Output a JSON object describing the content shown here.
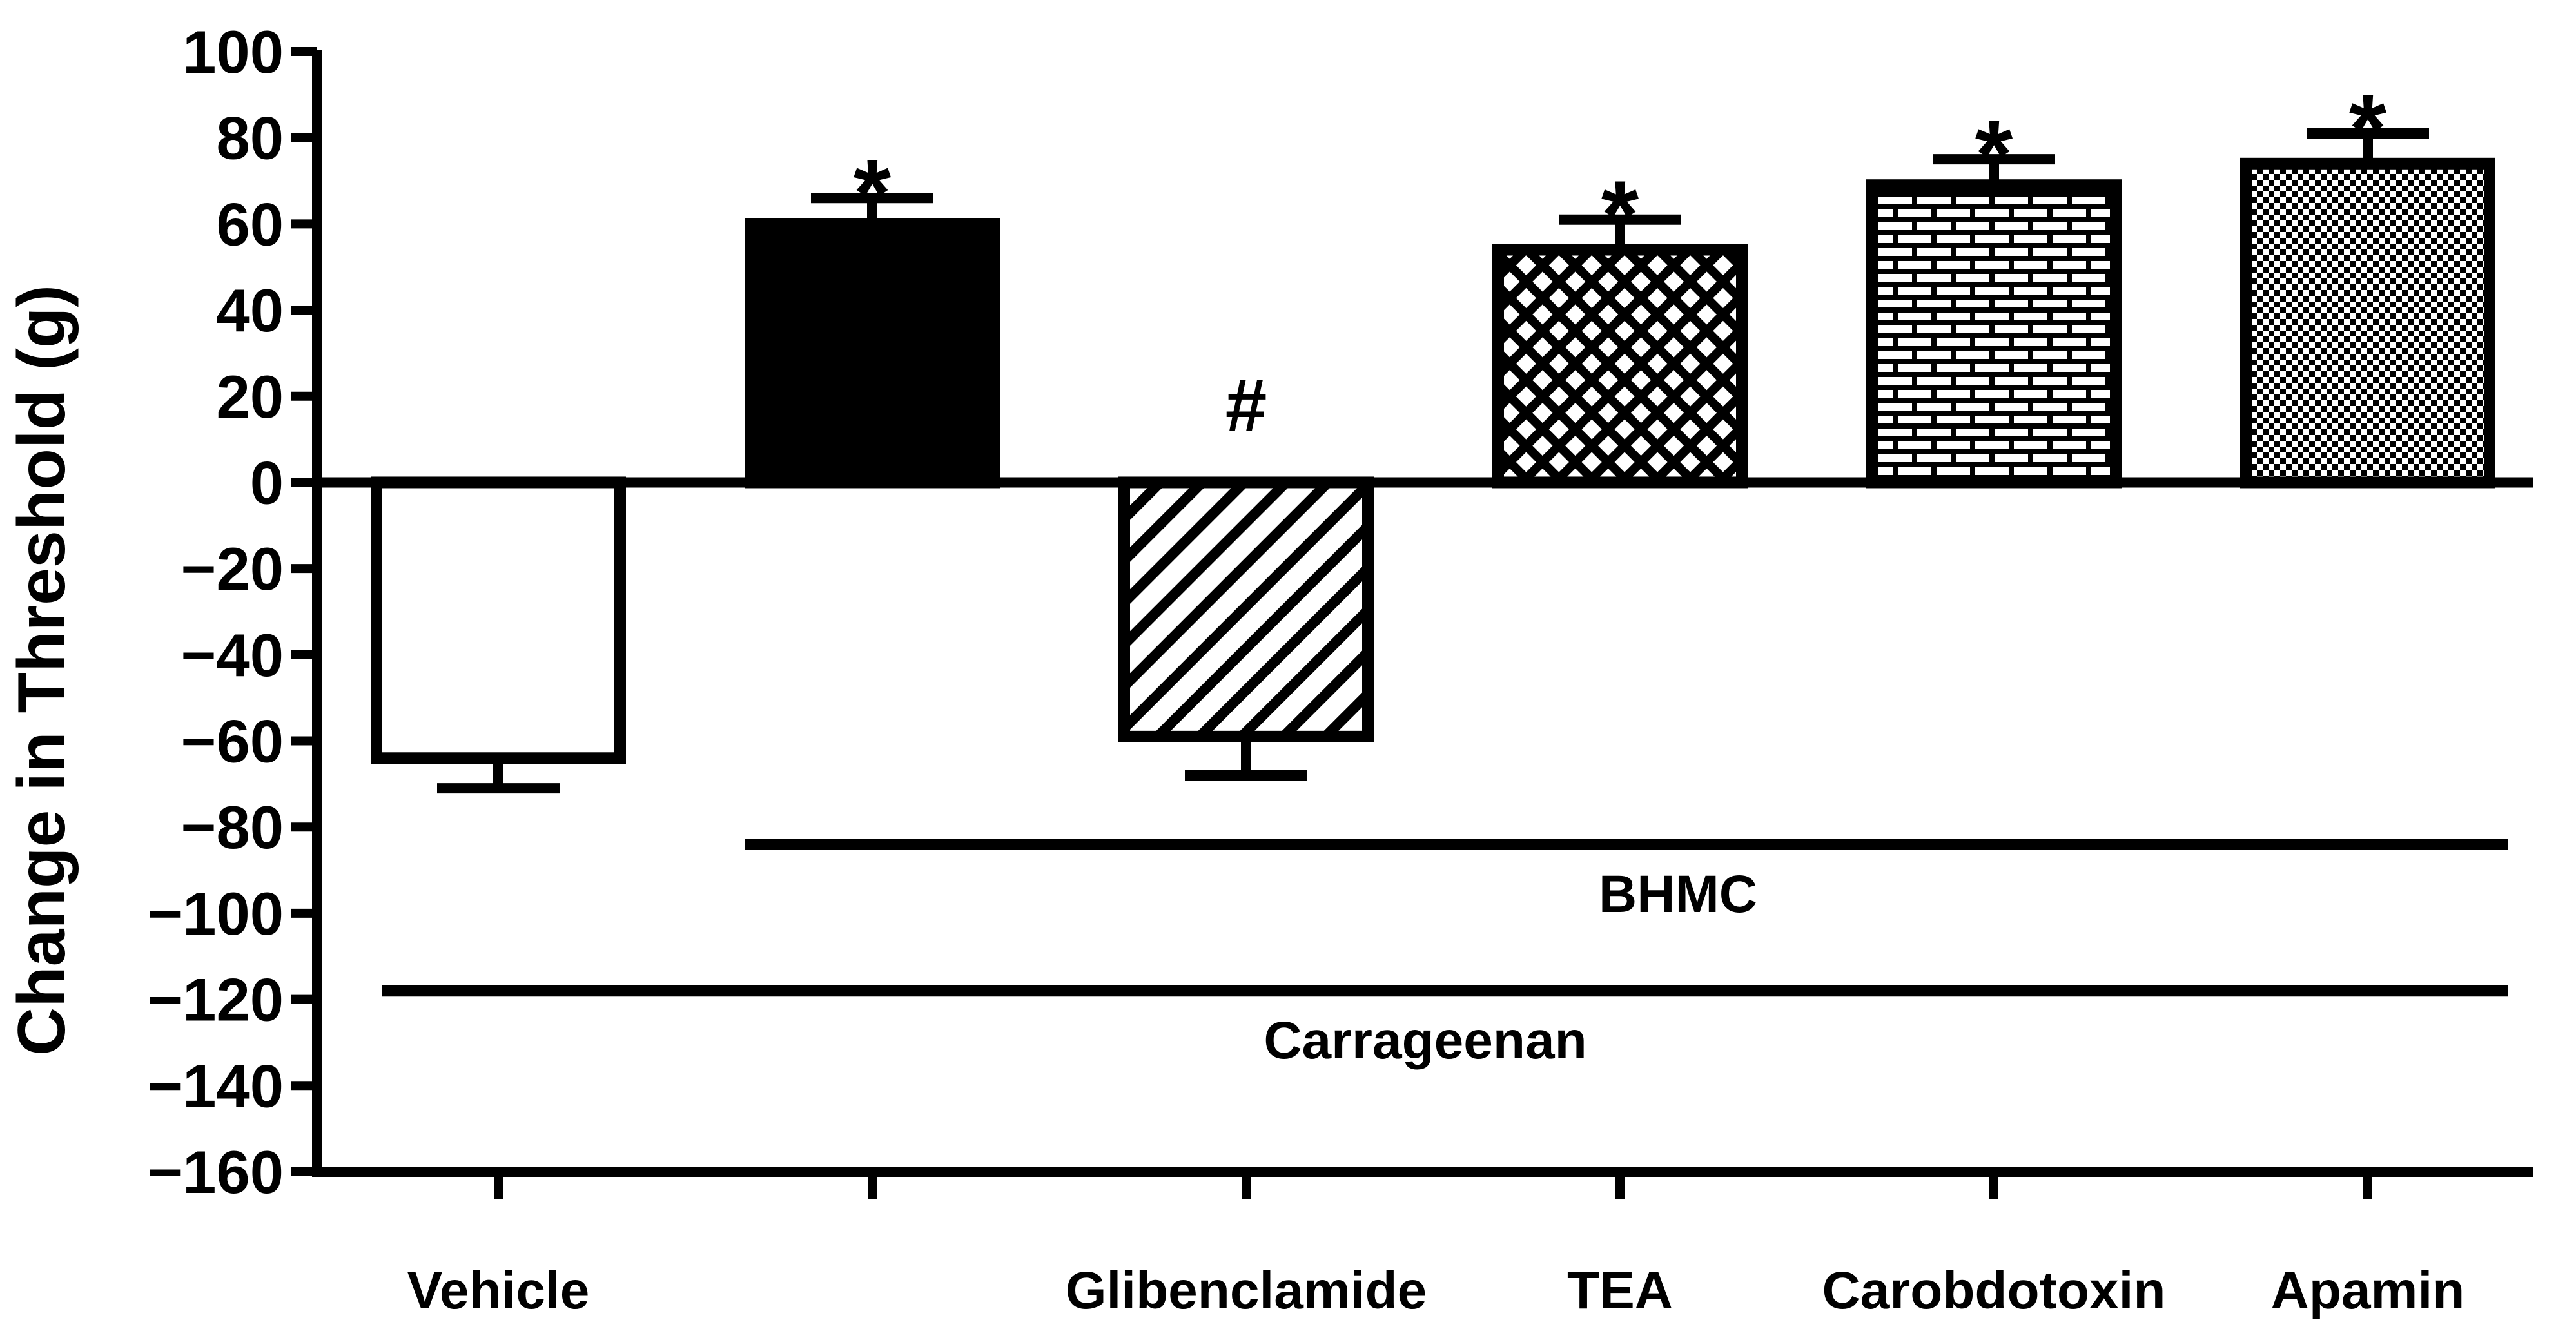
{
  "chart_data": {
    "type": "bar",
    "ylabel": "Change in Threshold (g)",
    "ylim": [
      -160,
      100
    ],
    "yticks": [
      100,
      80,
      60,
      40,
      20,
      0,
      -20,
      -40,
      -60,
      -80,
      -100,
      -120,
      -140,
      -160
    ],
    "ytick_labels": [
      "100",
      "80",
      "60",
      "40",
      "20",
      "0",
      "−20",
      "−40",
      "−60",
      "−80",
      "−100",
      "−120",
      "−140",
      "−160"
    ],
    "categories": [
      "Vehicle",
      "",
      "Glibenclamide",
      "TEA",
      "Carobdotoxin",
      "Apamin"
    ],
    "values": [
      -64,
      60,
      -59,
      54,
      69,
      74
    ],
    "errors": [
      7,
      6,
      9,
      7,
      6,
      7
    ],
    "fills": [
      "white",
      "solid",
      "diagonal",
      "crosshatch",
      "brick",
      "checker"
    ],
    "annotations": [
      "",
      "*",
      "#",
      "*",
      "*",
      "*"
    ],
    "group_lines": [
      {
        "label": "BHMC",
        "from_index": 1,
        "to_index": 5,
        "y": -84
      },
      {
        "label": "Carrageenan",
        "from_index": 0,
        "to_index": 5,
        "y": -118
      }
    ],
    "grid": false,
    "legend": "none",
    "colors": {
      "bar_stroke": "#000000",
      "bar_fill": "#ffffff",
      "axis": "#000000"
    }
  }
}
